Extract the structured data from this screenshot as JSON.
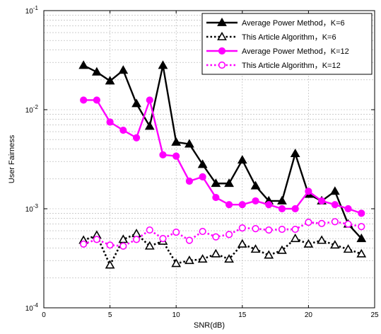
{
  "chart_data": {
    "type": "line",
    "title": "",
    "xlabel": "SNR(dB)",
    "ylabel": "User Fairness",
    "xlim": [
      0,
      25
    ],
    "ylim": [
      0.0001,
      0.1
    ],
    "yscale": "log",
    "grid": true,
    "legend_position": "top-right",
    "x_ticks": [
      "0",
      "5",
      "10",
      "15",
      "20",
      "25"
    ],
    "y_ticks": [
      {
        "base": "10",
        "exp": "-4",
        "value": 0.0001
      },
      {
        "base": "10",
        "exp": "-3",
        "value": 0.001
      },
      {
        "base": "10",
        "exp": "-2",
        "value": 0.01
      },
      {
        "base": "10",
        "exp": "-1",
        "value": 0.1
      }
    ],
    "x": [
      3,
      4,
      5,
      6,
      7,
      8,
      9,
      10,
      11,
      12,
      13,
      14,
      15,
      16,
      17,
      18,
      19,
      20,
      21,
      22,
      23,
      24
    ],
    "series": [
      {
        "name": "Average Power Method，K=6",
        "color": "#000000",
        "line_style": "solid",
        "marker": "triangle-filled",
        "values": [
          0.028,
          0.024,
          0.0195,
          0.025,
          0.0115,
          0.0068,
          0.028,
          0.0047,
          0.0045,
          0.0028,
          0.0018,
          0.0018,
          0.0031,
          0.0017,
          0.0012,
          0.0012,
          0.0036,
          0.0014,
          0.0012,
          0.0015,
          0.0007,
          0.0005
        ]
      },
      {
        "name": "This Article Algorithm，K=6",
        "color": "#000000",
        "line_style": "dotted",
        "marker": "triangle-open",
        "values": [
          0.00048,
          0.00054,
          0.00027,
          0.00049,
          0.00056,
          0.00042,
          0.00047,
          0.00028,
          0.0003,
          0.00031,
          0.00035,
          0.00031,
          0.00044,
          0.00039,
          0.00034,
          0.00038,
          0.0005,
          0.00044,
          0.00048,
          0.00043,
          0.00039,
          0.00035
        ]
      },
      {
        "name": "Average Power Method，K=12",
        "color": "#ff00ff",
        "line_style": "solid",
        "marker": "circle-filled",
        "values": [
          0.0125,
          0.0125,
          0.0075,
          0.0062,
          0.0052,
          0.0125,
          0.0035,
          0.0034,
          0.0019,
          0.0021,
          0.0013,
          0.0011,
          0.0011,
          0.0012,
          0.0011,
          0.001,
          0.001,
          0.0015,
          0.0012,
          0.0011,
          0.001,
          0.0009
        ]
      },
      {
        "name": "This Article Algorithm，K=12",
        "color": "#ff00ff",
        "line_style": "dotted",
        "marker": "circle-open",
        "values": [
          0.00044,
          0.00049,
          0.00043,
          0.00042,
          0.00049,
          0.00061,
          0.0005,
          0.00058,
          0.00048,
          0.00059,
          0.00052,
          0.00055,
          0.00064,
          0.00063,
          0.00061,
          0.00062,
          0.00062,
          0.00073,
          0.00071,
          0.00074,
          0.0007,
          0.00066
        ]
      }
    ]
  }
}
